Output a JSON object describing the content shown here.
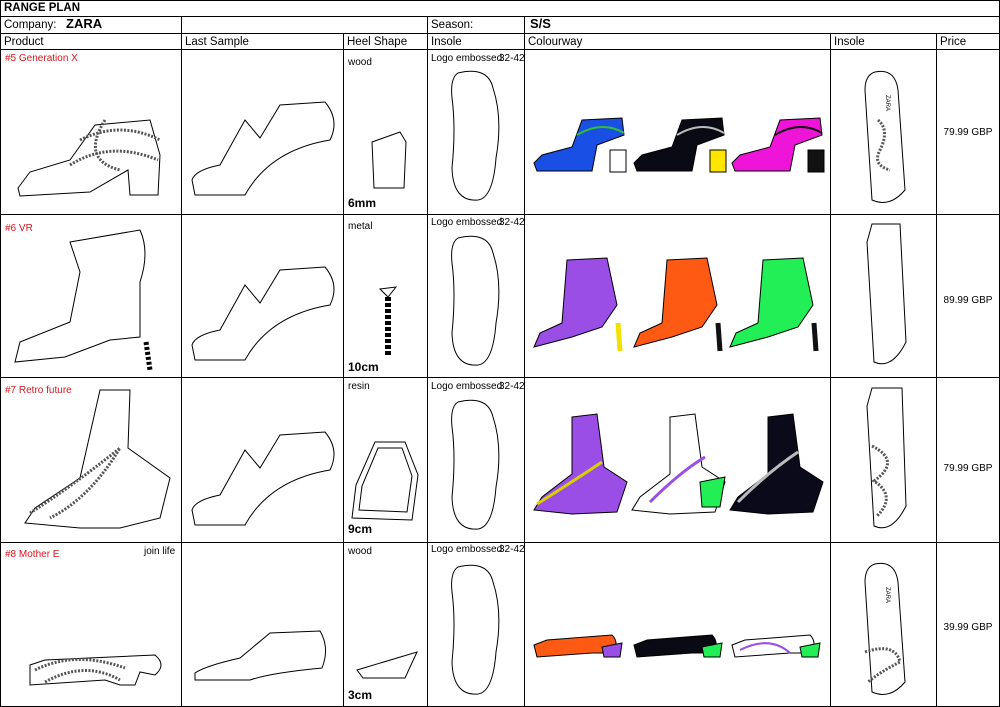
{
  "header": {
    "title": "RANGE PLAN",
    "company_label": "Company:",
    "company_value": "ZARA",
    "season_label": "Season:",
    "season_value": "S/S"
  },
  "columns": [
    "Product",
    "Last Sample",
    "Heel Shape",
    "Insole",
    "Colourway",
    "Insole",
    "Price"
  ],
  "rows": [
    {
      "product": "#5 Generation X",
      "tag": "",
      "heel_material": "wood",
      "heel_height": "6mm",
      "insole_note": "Logo embossed",
      "size_range": "32-42",
      "price": "79.99 GBP",
      "colours": [
        "#1a4fe6",
        "#0a0a14",
        "#ee14d8"
      ],
      "accents": [
        "#30c030",
        "#ffe600",
        "#111111"
      ]
    },
    {
      "product": "#6 VR",
      "tag": "",
      "heel_material": "metal",
      "heel_height": "10cm",
      "insole_note": "Logo embossed",
      "size_range": "32-42",
      "price": "89.99 GBP",
      "colours": [
        "#9a4ee6",
        "#ff5a14",
        "#22ee55"
      ],
      "accents": [
        "#f2e000",
        "#111111",
        "#111111"
      ]
    },
    {
      "product": "#7 Retro future",
      "tag": "",
      "heel_material": "resin",
      "heel_height": "9cm",
      "insole_note": "Logo embossed",
      "size_range": "32-42",
      "price": "79.99 GBP",
      "colours": [
        "#9a4ee6",
        "#ffffff",
        "#0a0a1a"
      ],
      "accents": [
        "#d8d000",
        "#22ee55",
        "#ffffff"
      ]
    },
    {
      "product": "#8 Mother E",
      "tag": "join life",
      "heel_material": "wood",
      "heel_height": "3cm",
      "insole_note": "Logo embossed",
      "size_range": "32-42",
      "price": "39.99 GBP",
      "colours": [
        "#ff5a14",
        "#0a0a14",
        "#ffffff"
      ],
      "accents": [
        "#9a4ee6",
        "#22ee55",
        "#22ee55"
      ]
    }
  ],
  "insole_logo": "ZARA"
}
